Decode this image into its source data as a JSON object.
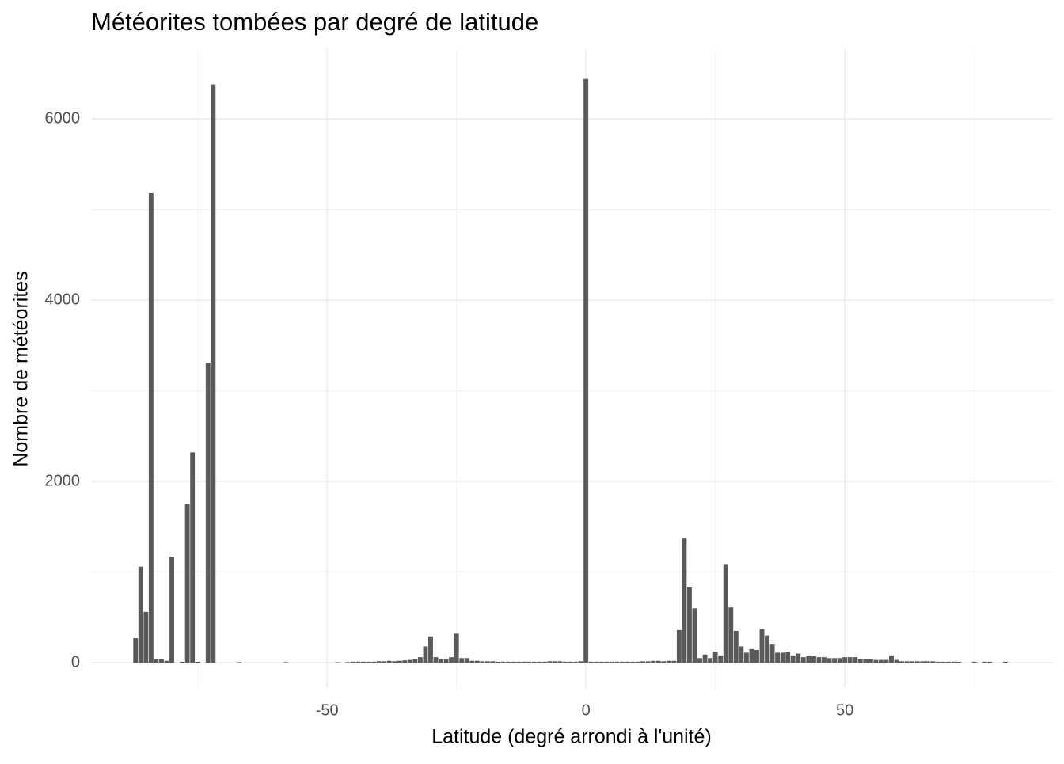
{
  "chart_data": {
    "type": "bar",
    "title": "Météorites tombées par degré de latitude",
    "x_label": "Latitude (degré arrondi à l'unité)",
    "y_label": "Nombre de météorites",
    "x": [
      -87,
      -86,
      -85,
      -84,
      -83,
      -82,
      -81,
      -80,
      -79,
      -78,
      -77,
      -76,
      -75,
      -74,
      -73,
      -72,
      -71,
      -70,
      -69,
      -68,
      -67,
      -66,
      -65,
      -64,
      -63,
      -62,
      -61,
      -60,
      -59,
      -58,
      -57,
      -56,
      -55,
      -54,
      -53,
      -52,
      -51,
      -50,
      -49,
      -48,
      -47,
      -46,
      -45,
      -44,
      -43,
      -42,
      -41,
      -40,
      -39,
      -38,
      -37,
      -36,
      -35,
      -34,
      -33,
      -32,
      -31,
      -30,
      -29,
      -28,
      -27,
      -26,
      -25,
      -24,
      -23,
      -22,
      -21,
      -20,
      -19,
      -18,
      -17,
      -16,
      -15,
      -14,
      -13,
      -12,
      -11,
      -10,
      -9,
      -8,
      -7,
      -6,
      -5,
      -4,
      -3,
      -2,
      -1,
      0,
      1,
      2,
      3,
      4,
      5,
      6,
      7,
      8,
      9,
      10,
      11,
      12,
      13,
      14,
      15,
      16,
      17,
      18,
      19,
      20,
      21,
      22,
      23,
      24,
      25,
      26,
      27,
      28,
      29,
      30,
      31,
      32,
      33,
      34,
      35,
      36,
      37,
      38,
      39,
      40,
      41,
      42,
      43,
      44,
      45,
      46,
      47,
      48,
      49,
      50,
      51,
      52,
      53,
      54,
      55,
      56,
      57,
      58,
      59,
      60,
      61,
      62,
      63,
      64,
      65,
      66,
      67,
      68,
      69,
      70,
      71,
      72,
      73,
      74,
      75,
      76,
      77,
      78,
      79,
      80,
      81,
      82
    ],
    "values": [
      270,
      1060,
      560,
      5180,
      40,
      40,
      20,
      1170,
      0,
      10,
      1750,
      2320,
      10,
      0,
      3310,
      6380,
      0,
      0,
      0,
      0,
      5,
      0,
      0,
      0,
      0,
      0,
      0,
      0,
      0,
      5,
      0,
      0,
      0,
      0,
      0,
      0,
      0,
      0,
      0,
      5,
      0,
      5,
      10,
      10,
      10,
      10,
      10,
      15,
      15,
      20,
      15,
      20,
      25,
      30,
      40,
      60,
      180,
      290,
      60,
      40,
      40,
      60,
      320,
      50,
      50,
      20,
      20,
      15,
      15,
      15,
      10,
      10,
      10,
      10,
      10,
      10,
      10,
      10,
      10,
      10,
      15,
      15,
      15,
      10,
      10,
      10,
      15,
      6440,
      10,
      10,
      10,
      10,
      10,
      10,
      10,
      10,
      10,
      10,
      15,
      15,
      20,
      20,
      15,
      20,
      20,
      360,
      1370,
      830,
      600,
      50,
      90,
      50,
      120,
      80,
      1080,
      610,
      350,
      180,
      110,
      150,
      140,
      370,
      300,
      200,
      110,
      110,
      120,
      80,
      100,
      60,
      70,
      70,
      60,
      60,
      50,
      50,
      50,
      60,
      60,
      60,
      40,
      40,
      40,
      30,
      30,
      30,
      80,
      30,
      15,
      15,
      15,
      15,
      15,
      15,
      15,
      10,
      10,
      10,
      10,
      10,
      0,
      0,
      10,
      0,
      10,
      10,
      0,
      0,
      10,
      0
    ],
    "color": "#595959",
    "xlim": [
      -95.6,
      90.2
    ],
    "ylim": [
      -288,
      6769
    ],
    "xticks": [
      -50,
      0,
      50
    ],
    "xminorticks": [
      -75,
      -25,
      25,
      75
    ],
    "yticks": [
      0,
      2000,
      4000,
      6000
    ],
    "yminorticks": [
      1000,
      3000,
      5000
    ],
    "grid": true
  }
}
